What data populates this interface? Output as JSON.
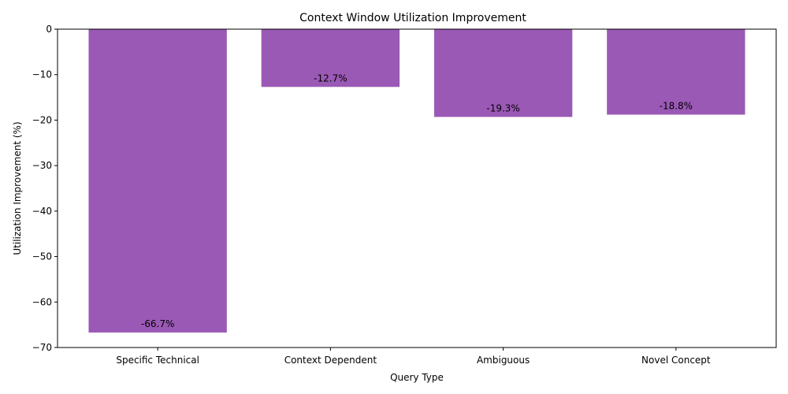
{
  "chart_data": {
    "type": "bar",
    "title": "Context Window Utilization Improvement",
    "xlabel": "Query Type",
    "ylabel": "Utilization Improvement (%)",
    "categories": [
      "Specific Technical",
      "Context Dependent",
      "Ambiguous",
      "Novel Concept"
    ],
    "values": [
      -66.7,
      -12.7,
      -19.3,
      -18.8
    ],
    "data_labels": [
      "-66.7%",
      "-12.7%",
      "-19.3%",
      "-18.8%"
    ],
    "ylim": [
      -70,
      0
    ],
    "yticks": [
      0,
      -10,
      -20,
      -30,
      -40,
      -50,
      -60,
      -70
    ],
    "ytick_labels": [
      "0",
      "−10",
      "−20",
      "−30",
      "−40",
      "−50",
      "−60",
      "−70"
    ],
    "grid": false,
    "legend": "none",
    "bar_color": "#9b59b6"
  }
}
